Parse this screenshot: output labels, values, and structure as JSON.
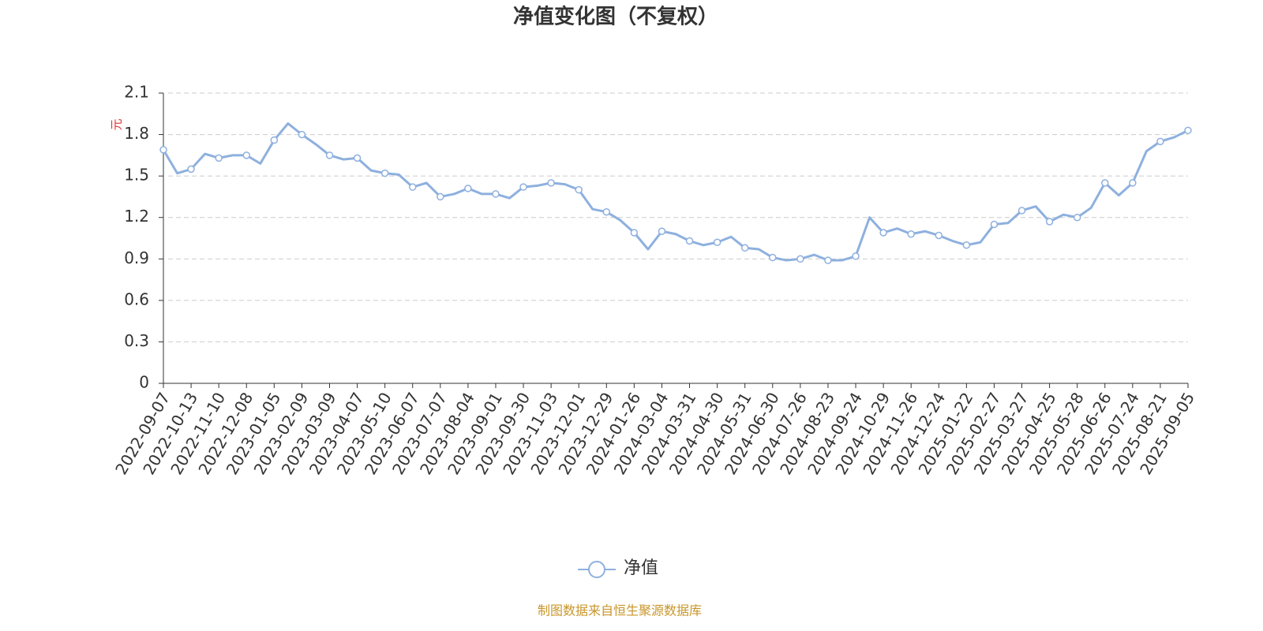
{
  "chart_data": {
    "type": "line",
    "title": "净值变化图（不复权）",
    "y_unit": "元",
    "source": "制图数据来自恒生聚源数据库",
    "categories": [
      "2022-09-07",
      null,
      "2022-10-13",
      null,
      "2022-11-10",
      null,
      "2022-12-08",
      null,
      "2023-01-05",
      null,
      "2023-02-09",
      null,
      "2023-03-09",
      null,
      "2023-04-07",
      null,
      "2023-05-10",
      null,
      "2023-06-07",
      null,
      "2023-07-07",
      null,
      "2023-08-04",
      null,
      "2023-09-01",
      null,
      "2023-09-30",
      null,
      "2023-11-03",
      null,
      "2023-12-01",
      null,
      "2023-12-29",
      null,
      "2024-01-26",
      null,
      "2024-03-04",
      null,
      "2024-03-31",
      null,
      "2024-04-30",
      null,
      "2024-05-31",
      null,
      "2024-06-30",
      null,
      "2024-07-26",
      null,
      "2024-08-23",
      null,
      "2024-09-24",
      null,
      "2024-10-29",
      null,
      "2024-11-26",
      null,
      "2024-12-24",
      null,
      "2025-01-22",
      null,
      "2025-02-27",
      null,
      "2025-03-27",
      null,
      "2025-04-25",
      null,
      "2025-05-28",
      null,
      "2025-06-26",
      null,
      "2025-07-24",
      null,
      "2025-08-21",
      null,
      "2025-09-05"
    ],
    "series": [
      {
        "name": "净值",
        "color": "#8eb0de",
        "values": [
          1.69,
          1.52,
          1.55,
          1.66,
          1.63,
          1.65,
          1.65,
          1.59,
          1.76,
          1.88,
          1.8,
          1.73,
          1.65,
          1.62,
          1.63,
          1.54,
          1.52,
          1.51,
          1.42,
          1.45,
          1.35,
          1.37,
          1.41,
          1.37,
          1.37,
          1.34,
          1.42,
          1.43,
          1.45,
          1.44,
          1.4,
          1.26,
          1.24,
          1.18,
          1.09,
          0.97,
          1.1,
          1.08,
          1.03,
          1.0,
          1.02,
          1.06,
          0.98,
          0.97,
          0.91,
          0.89,
          0.9,
          0.93,
          0.89,
          0.89,
          0.92,
          1.2,
          1.09,
          1.12,
          1.08,
          1.1,
          1.07,
          1.03,
          1.0,
          1.02,
          1.15,
          1.16,
          1.25,
          1.28,
          1.17,
          1.22,
          1.2,
          1.27,
          1.45,
          1.36,
          1.45,
          1.68,
          1.75,
          1.78,
          1.83
        ]
      }
    ],
    "ylim": [
      0,
      2.1
    ],
    "yticks": [
      0,
      0.3,
      0.6,
      0.9,
      1.2,
      1.5,
      1.8,
      2.1
    ],
    "grid": true
  }
}
